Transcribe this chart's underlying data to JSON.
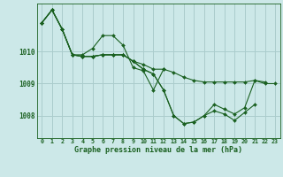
{
  "title": "Graphe pression niveau de la mer (hPa)",
  "bg_color": "#cce8e8",
  "grid_color": "#aacccc",
  "line_color": "#1a6020",
  "x_labels": [
    "0",
    "1",
    "2",
    "3",
    "4",
    "5",
    "6",
    "7",
    "8",
    "9",
    "10",
    "11",
    "12",
    "13",
    "14",
    "15",
    "16",
    "17",
    "18",
    "19",
    "20",
    "21",
    "22",
    "23"
  ],
  "ylim": [
    1007.3,
    1011.5
  ],
  "yticks": [
    1008,
    1009,
    1010
  ],
  "series": [
    [
      1010.9,
      1011.3,
      1010.7,
      1009.9,
      1009.9,
      1010.1,
      1010.5,
      1010.5,
      1010.2,
      1009.5,
      1009.4,
      1008.8,
      1009.45,
      null,
      null,
      null,
      null,
      null,
      null,
      null,
      null,
      null,
      null,
      null
    ],
    [
      1010.9,
      1011.3,
      1010.7,
      1009.9,
      1009.85,
      1009.85,
      1009.9,
      1009.9,
      1009.9,
      1009.7,
      1009.6,
      1009.45,
      1009.45,
      1009.35,
      1009.2,
      1009.1,
      1009.05,
      1009.05,
      1009.05,
      1009.05,
      1009.05,
      1009.1,
      1009.0,
      1009.0
    ],
    [
      1010.9,
      1011.3,
      1010.7,
      1009.9,
      1009.85,
      1009.85,
      1009.9,
      1009.9,
      1009.9,
      1009.7,
      1009.45,
      1009.3,
      1008.8,
      1008.0,
      1007.75,
      1007.8,
      1008.0,
      1008.35,
      1008.2,
      1008.05,
      1008.25,
      1009.1,
      1009.05,
      null
    ],
    [
      1010.9,
      1011.3,
      1010.7,
      1009.9,
      1009.85,
      1009.85,
      1009.9,
      1009.9,
      1009.9,
      1009.7,
      1009.45,
      1009.3,
      1008.8,
      1008.0,
      1007.75,
      1007.8,
      1008.0,
      1008.15,
      1008.05,
      1007.85,
      1008.1,
      1008.35,
      null,
      null
    ]
  ]
}
